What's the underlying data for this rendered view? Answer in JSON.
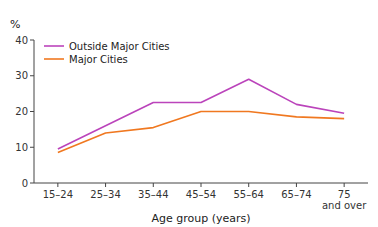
{
  "chart_data": {
    "type": "line",
    "x_label": "Age group (years)",
    "y_label": "%",
    "categories": [
      "15–24",
      "25–34",
      "35–44",
      "45–54",
      "55–64",
      "65–74",
      "75\nand over"
    ],
    "series": [
      {
        "name": "Outside Major Cities",
        "color": "#bb44bb",
        "values": [
          9.5,
          16.0,
          22.5,
          22.5,
          29.0,
          22.0,
          19.5
        ]
      },
      {
        "name": "Major Cities",
        "color": "#f07820",
        "values": [
          8.5,
          14.0,
          15.5,
          20.0,
          20.0,
          18.5,
          18.0
        ]
      }
    ],
    "ylim": [
      0,
      40
    ],
    "yticks": [
      0,
      10,
      20,
      30,
      40
    ],
    "grid": false,
    "legend": "top-left"
  }
}
